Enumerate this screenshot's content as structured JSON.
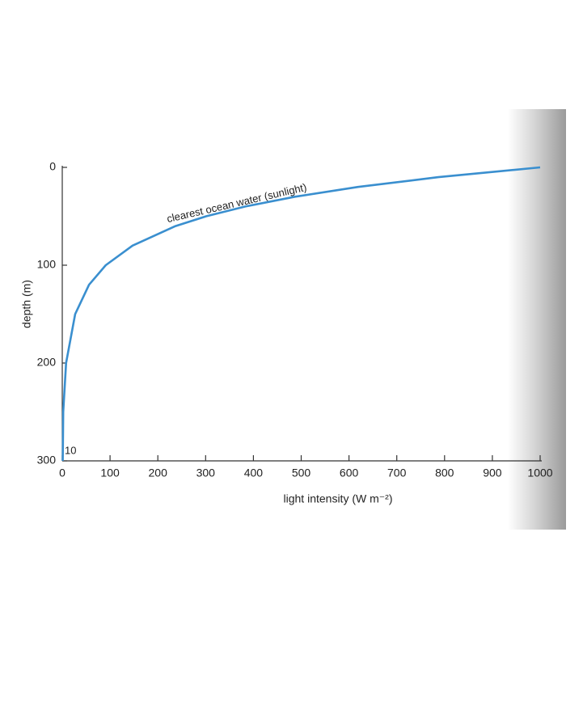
{
  "chart_data": {
    "type": "line",
    "xlabel": "light intensity (W m⁻²)",
    "ylabel": "depth (m)",
    "annotations": [
      "clearest ocean water (sunlight)",
      "10"
    ],
    "x": [
      1000,
      787,
      619,
      487,
      383,
      301,
      237,
      147,
      91,
      56,
      27,
      8,
      2,
      1
    ],
    "series": [
      {
        "name": "clearest ocean water (sunlight)",
        "color": "#3a8fcf",
        "values": [
          0,
          10,
          20,
          30,
          40,
          50,
          60,
          80,
          100,
          120,
          150,
          200,
          250,
          300
        ]
      }
    ],
    "xlim": [
      0,
      1000
    ],
    "xticks": [
      0,
      100,
      200,
      300,
      400,
      500,
      600,
      700,
      800,
      900,
      1000
    ],
    "ylim": [
      0,
      300
    ],
    "yticks": [
      0,
      100,
      200,
      300
    ],
    "y_inverted": true,
    "grid": false
  }
}
